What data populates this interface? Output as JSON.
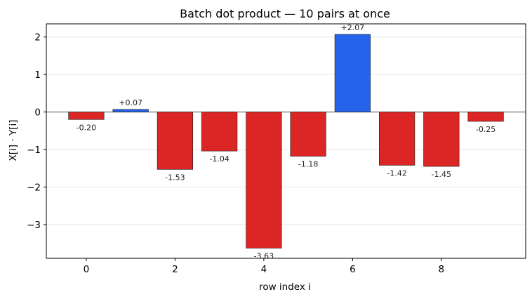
{
  "chart_data": {
    "type": "bar",
    "title": "Batch dot product — 10 pairs at once",
    "xlabel": "row index  i",
    "ylabel": "X[i] · Y[i]",
    "x": [
      0,
      1,
      2,
      3,
      4,
      5,
      6,
      7,
      8,
      9
    ],
    "values": [
      -0.2,
      0.07,
      -1.53,
      -1.04,
      -3.63,
      -1.18,
      2.07,
      -1.42,
      -1.45,
      -0.25
    ],
    "data_labels": [
      "-0.20",
      "+0.07",
      "-1.53",
      "-1.04",
      "-3.63",
      "-1.18",
      "+2.07",
      "-1.42",
      "-1.45",
      "-0.25"
    ],
    "xlim": [
      -0.9,
      9.9
    ],
    "ylim": [
      -3.9,
      2.35
    ],
    "xticks": [
      0,
      2,
      4,
      6,
      8
    ],
    "yticks": [
      -3,
      -2,
      -1,
      0,
      1,
      2
    ],
    "ytick_labels": [
      "−3",
      "−2",
      "−1",
      "0",
      "1",
      "2"
    ],
    "grid": "horizontal",
    "zero_line": true,
    "colors": {
      "positive": "#2563eb",
      "negative": "#dc2626",
      "edge": "#1a1a1a",
      "grid": "#e6e6e6",
      "zero_line": "#555555"
    }
  }
}
